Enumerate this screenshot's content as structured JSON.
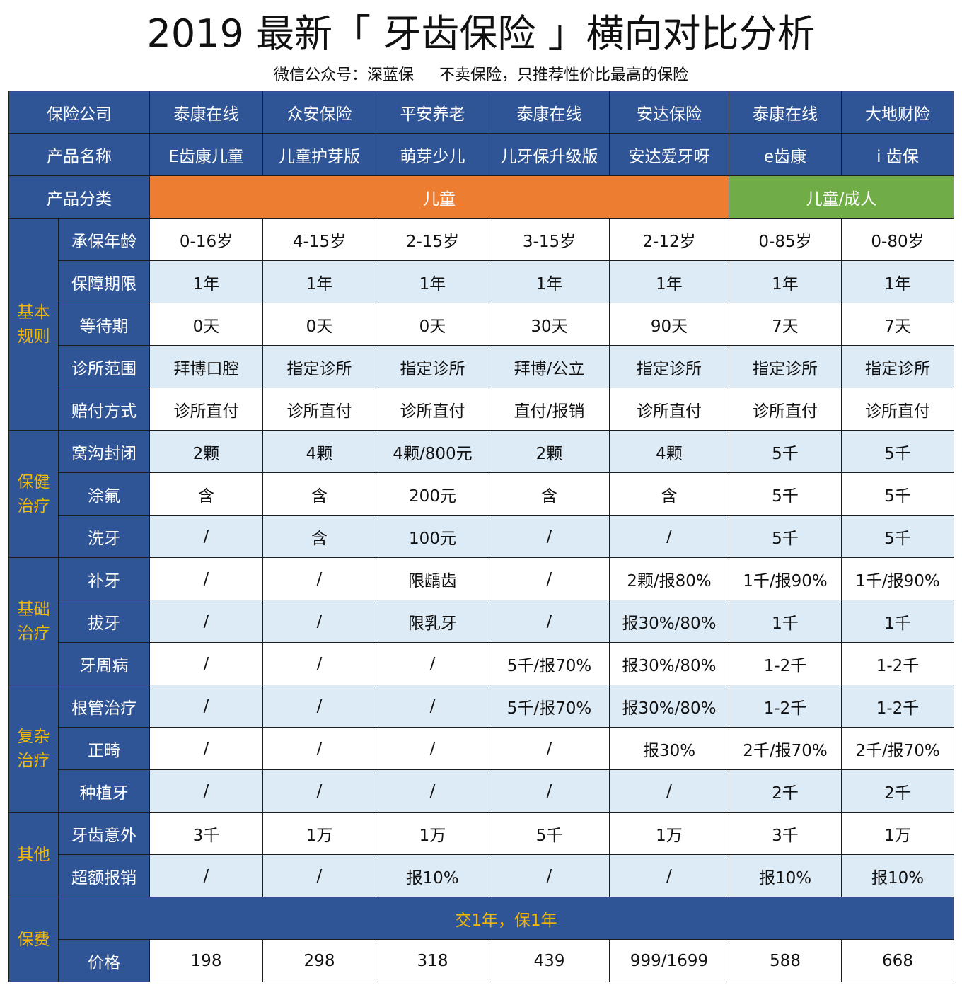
{
  "title": "2019 最新「 牙齿保险 」横向对比分析",
  "subtitle": {
    "source": "微信公众号：深蓝保",
    "slogan": "不卖保险，只推荐性价比最高的保险"
  },
  "header": {
    "company_label": "保险公司",
    "companies": [
      "泰康在线",
      "众安保险",
      "平安养老",
      "泰康在线",
      "安达保险",
      "泰康在线",
      "大地财险"
    ],
    "product_label": "产品名称",
    "products": [
      "E齿康儿童",
      "儿童护芽版",
      "萌芽少儿",
      "儿牙保升级版",
      "安达爱牙呀",
      "e齿康",
      "i 齿保"
    ],
    "type_label": "产品分类",
    "type_child": "儿童",
    "type_child_adult": "儿童/成人"
  },
  "sections": [
    {
      "category": "基本规则",
      "rows": [
        {
          "label": "承保年龄",
          "values": [
            "0-16岁",
            "4-15岁",
            "2-15岁",
            "3-15岁",
            "2-12岁",
            "0-85岁",
            "0-80岁"
          ]
        },
        {
          "label": "保障期限",
          "values": [
            "1年",
            "1年",
            "1年",
            "1年",
            "1年",
            "1年",
            "1年"
          ]
        },
        {
          "label": "等待期",
          "values": [
            "0天",
            "0天",
            "0天",
            "30天",
            "90天",
            "7天",
            "7天"
          ]
        },
        {
          "label": "诊所范围",
          "values": [
            "拜博口腔",
            "指定诊所",
            "指定诊所",
            "拜博/公立",
            "指定诊所",
            "指定诊所",
            "指定诊所"
          ]
        },
        {
          "label": "赔付方式",
          "values": [
            "诊所直付",
            "诊所直付",
            "诊所直付",
            "直付/报销",
            "诊所直付",
            "诊所直付",
            "诊所直付"
          ]
        }
      ]
    },
    {
      "category": "保健治疗",
      "rows": [
        {
          "label": "窝沟封闭",
          "values": [
            "2颗",
            "4颗",
            "4颗/800元",
            "2颗",
            "4颗",
            "5千",
            "5千"
          ]
        },
        {
          "label": "涂氟",
          "values": [
            "含",
            "含",
            "200元",
            "含",
            "含",
            "5千",
            "5千"
          ]
        },
        {
          "label": "洗牙",
          "values": [
            "/",
            "含",
            "100元",
            "/",
            "/",
            "5千",
            "5千"
          ]
        }
      ]
    },
    {
      "category": "基础治疗",
      "rows": [
        {
          "label": "补牙",
          "values": [
            "/",
            "/",
            "限龋齿",
            "/",
            "2颗/报80%",
            "1千/报90%",
            "1千/报90%"
          ]
        },
        {
          "label": "拔牙",
          "values": [
            "/",
            "/",
            "限乳牙",
            "/",
            "报30%/80%",
            "1千",
            "1千"
          ]
        },
        {
          "label": "牙周病",
          "values": [
            "/",
            "/",
            "/",
            "5千/报70%",
            "报30%/80%",
            "1-2千",
            "1-2千"
          ]
        }
      ]
    },
    {
      "category": "复杂治疗",
      "rows": [
        {
          "label": "根管治疗",
          "values": [
            "/",
            "/",
            "/",
            "5千/报70%",
            "报30%/80%",
            "1-2千",
            "1-2千"
          ]
        },
        {
          "label": "正畸",
          "values": [
            "/",
            "/",
            "/",
            "/",
            "报30%",
            "2千/报70%",
            "2千/报70%"
          ]
        },
        {
          "label": "种植牙",
          "values": [
            "/",
            "/",
            "/",
            "/",
            "/",
            "2千",
            "2千"
          ]
        }
      ]
    },
    {
      "category": "其他",
      "rows": [
        {
          "label": "牙齿意外",
          "values": [
            "3千",
            "1万",
            "1万",
            "5千",
            "1万",
            "3千",
            "1万"
          ]
        },
        {
          "label": "超额报销",
          "values": [
            "/",
            "/",
            "报10%",
            "/",
            "/",
            "报10%",
            "报10%"
          ]
        }
      ]
    }
  ],
  "premium": {
    "category": "保费",
    "term_note": "交1年，保1年",
    "price_label": "价格",
    "prices": [
      "198",
      "298",
      "318",
      "439",
      "999/1699",
      "588",
      "668"
    ]
  },
  "colors": {
    "header_blue": "#2f5597",
    "light_blue_row": "#ddebf7",
    "orange": "#ed7d31",
    "green": "#70ad47",
    "gold_text": "#f2b705"
  }
}
